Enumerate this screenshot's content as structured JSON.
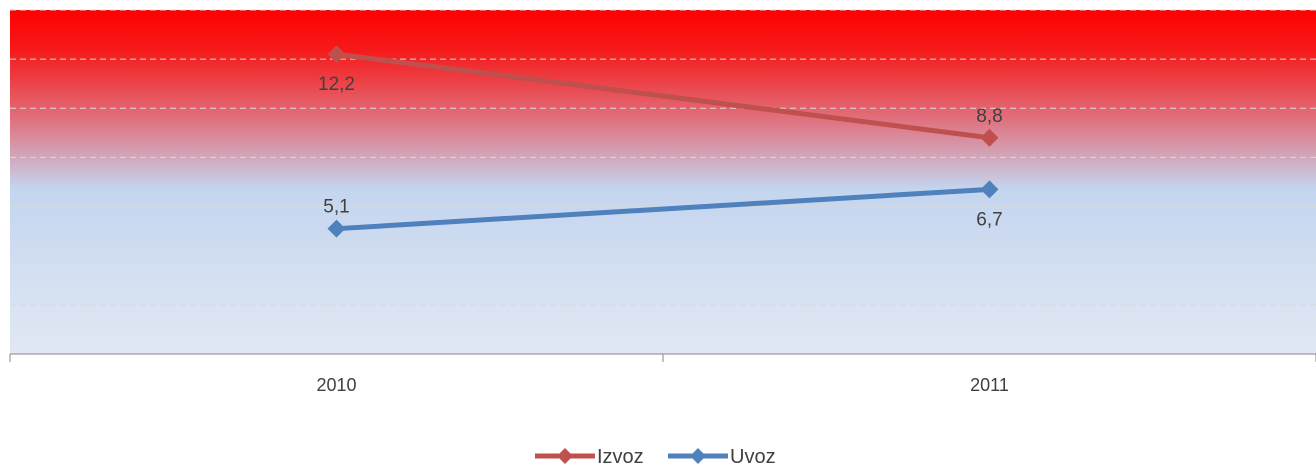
{
  "chart_data": {
    "type": "line",
    "categories": [
      "2010",
      "2011"
    ],
    "series": [
      {
        "name": "Izvoz",
        "values": [
          12.2,
          8.8
        ],
        "labels": [
          "12,2",
          "8,8"
        ],
        "color": "#c0504d",
        "label_position": [
          "below",
          "above"
        ]
      },
      {
        "name": "Uvoz",
        "values": [
          5.1,
          6.7
        ],
        "labels": [
          "5,1",
          "6,7"
        ],
        "color": "#4f81bd",
        "label_position": [
          "above",
          "below"
        ]
      }
    ],
    "ylim": [
      0,
      14
    ],
    "grid": true,
    "legend_position": "bottom",
    "colors": {
      "plot_top": "#ff0000",
      "plot_mid": "#c4d5ef",
      "plot_bottom": "#e1e8f4",
      "gridline": "#d9d9d9",
      "axis": "#868686",
      "text": "#404040"
    }
  }
}
